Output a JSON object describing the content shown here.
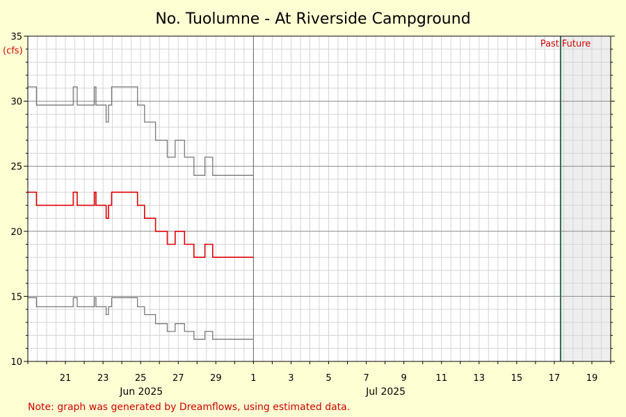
{
  "chart_data": {
    "type": "line",
    "title": "No. Tuolumne - At Riverside Campground",
    "ylabel": "(cfs)",
    "ylim": [
      10,
      35
    ],
    "yticks": [
      10,
      15,
      20,
      25,
      30,
      35
    ],
    "xlim_days": [
      "2025-06-19",
      "2025-07-20"
    ],
    "x_tick_labels": [
      {
        "date": "2025-06-21",
        "label": "21"
      },
      {
        "date": "2025-06-23",
        "label": "23"
      },
      {
        "date": "2025-06-25",
        "label": "25"
      },
      {
        "date": "2025-06-27",
        "label": "27"
      },
      {
        "date": "2025-06-29",
        "label": "29"
      },
      {
        "date": "2025-07-01",
        "label": "1"
      },
      {
        "date": "2025-07-03",
        "label": "3"
      },
      {
        "date": "2025-07-05",
        "label": "5"
      },
      {
        "date": "2025-07-07",
        "label": "7"
      },
      {
        "date": "2025-07-09",
        "label": "9"
      },
      {
        "date": "2025-07-11",
        "label": "11"
      },
      {
        "date": "2025-07-13",
        "label": "13"
      },
      {
        "date": "2025-07-15",
        "label": "15"
      },
      {
        "date": "2025-07-17",
        "label": "17"
      },
      {
        "date": "2025-07-19",
        "label": "19"
      }
    ],
    "month_labels": [
      {
        "date": "2025-06-25",
        "label": "Jun 2025"
      },
      {
        "date": "2025-07-08",
        "label": "Jul 2025"
      }
    ],
    "month_boundary": "2025-07-01",
    "now_marker": "2025-07-17T08:00",
    "past_label": "Past",
    "future_label": "Future",
    "grid": true,
    "series": [
      {
        "color": "#777777",
        "x": [
          "2025-06-19T00:00",
          "2025-06-19T11:00",
          "2025-06-19T11:00",
          "2025-06-21T10:00",
          "2025-06-21T10:00",
          "2025-06-21T15:00",
          "2025-06-21T15:00",
          "2025-06-22T13:00",
          "2025-06-22T13:00",
          "2025-06-22T15:00",
          "2025-06-22T15:00",
          "2025-06-23T04:00",
          "2025-06-23T04:00",
          "2025-06-23T07:00",
          "2025-06-23T07:00",
          "2025-06-23T11:00",
          "2025-06-23T11:00",
          "2025-06-24T20:00",
          "2025-06-24T20:00",
          "2025-06-25T05:00",
          "2025-06-25T05:00",
          "2025-06-25T19:00",
          "2025-06-25T19:00",
          "2025-06-26T10:00",
          "2025-06-26T10:00",
          "2025-06-26T20:00",
          "2025-06-26T20:00",
          "2025-06-27T08:00",
          "2025-06-27T08:00",
          "2025-06-27T20:00",
          "2025-06-27T20:00",
          "2025-06-28T10:00",
          "2025-06-28T10:00",
          "2025-06-28T20:00",
          "2025-06-28T20:00",
          "2025-06-30T24:00"
        ],
        "y": [
          31.1,
          31.1,
          29.7,
          29.7,
          31.1,
          31.1,
          29.7,
          29.7,
          31.1,
          31.1,
          29.7,
          29.7,
          28.4,
          28.4,
          29.7,
          29.7,
          31.1,
          31.1,
          29.7,
          29.7,
          28.4,
          28.4,
          27.0,
          27.0,
          25.7,
          25.7,
          27.0,
          27.0,
          25.7,
          25.7,
          24.3,
          24.3,
          25.7,
          25.7,
          24.3,
          24.3
        ]
      },
      {
        "color": "#dd0000",
        "x": [
          "2025-06-19T00:00",
          "2025-06-19T11:00",
          "2025-06-19T11:00",
          "2025-06-21T10:00",
          "2025-06-21T10:00",
          "2025-06-21T15:00",
          "2025-06-21T15:00",
          "2025-06-22T13:00",
          "2025-06-22T13:00",
          "2025-06-22T15:00",
          "2025-06-22T15:00",
          "2025-06-23T04:00",
          "2025-06-23T04:00",
          "2025-06-23T07:00",
          "2025-06-23T07:00",
          "2025-06-23T11:00",
          "2025-06-23T11:00",
          "2025-06-24T20:00",
          "2025-06-24T20:00",
          "2025-06-25T05:00",
          "2025-06-25T05:00",
          "2025-06-25T19:00",
          "2025-06-25T19:00",
          "2025-06-26T10:00",
          "2025-06-26T10:00",
          "2025-06-26T20:00",
          "2025-06-26T20:00",
          "2025-06-27T08:00",
          "2025-06-27T08:00",
          "2025-06-27T20:00",
          "2025-06-27T20:00",
          "2025-06-28T10:00",
          "2025-06-28T10:00",
          "2025-06-28T20:00",
          "2025-06-28T20:00",
          "2025-06-30T24:00"
        ],
        "y": [
          23.0,
          23.0,
          22.0,
          22.0,
          23.0,
          23.0,
          22.0,
          22.0,
          23.0,
          23.0,
          22.0,
          22.0,
          21.0,
          21.0,
          22.0,
          22.0,
          23.0,
          23.0,
          22.0,
          22.0,
          21.0,
          21.0,
          20.0,
          20.0,
          19.0,
          19.0,
          20.0,
          20.0,
          19.0,
          19.0,
          18.0,
          18.0,
          19.0,
          19.0,
          18.0,
          18.0
        ]
      },
      {
        "color": "#777777",
        "x": [
          "2025-06-19T00:00",
          "2025-06-19T11:00",
          "2025-06-19T11:00",
          "2025-06-21T10:00",
          "2025-06-21T10:00",
          "2025-06-21T15:00",
          "2025-06-21T15:00",
          "2025-06-22T13:00",
          "2025-06-22T13:00",
          "2025-06-22T15:00",
          "2025-06-22T15:00",
          "2025-06-23T04:00",
          "2025-06-23T04:00",
          "2025-06-23T07:00",
          "2025-06-23T07:00",
          "2025-06-23T11:00",
          "2025-06-23T11:00",
          "2025-06-24T20:00",
          "2025-06-24T20:00",
          "2025-06-25T05:00",
          "2025-06-25T05:00",
          "2025-06-25T19:00",
          "2025-06-25T19:00",
          "2025-06-26T10:00",
          "2025-06-26T10:00",
          "2025-06-26T20:00",
          "2025-06-26T20:00",
          "2025-06-27T08:00",
          "2025-06-27T08:00",
          "2025-06-27T20:00",
          "2025-06-27T20:00",
          "2025-06-28T10:00",
          "2025-06-28T10:00",
          "2025-06-28T20:00",
          "2025-06-28T20:00",
          "2025-06-30T24:00"
        ],
        "y": [
          14.9,
          14.9,
          14.2,
          14.2,
          14.9,
          14.9,
          14.2,
          14.2,
          14.9,
          14.9,
          14.2,
          14.2,
          13.6,
          13.6,
          14.2,
          14.2,
          14.9,
          14.9,
          14.2,
          14.2,
          13.6,
          13.6,
          12.9,
          12.9,
          12.3,
          12.3,
          12.9,
          12.9,
          12.3,
          12.3,
          11.7,
          11.7,
          12.3,
          12.3,
          11.7,
          11.7
        ]
      }
    ]
  },
  "note": "Note: graph was generated by Dreamflows, using estimated data.",
  "colors": {
    "background": "#ffffd4",
    "plot_background": "#ffffff",
    "future_shade": "#eeeeee",
    "now_line": "#2e6b4f",
    "accent_text": "#cc0000"
  }
}
